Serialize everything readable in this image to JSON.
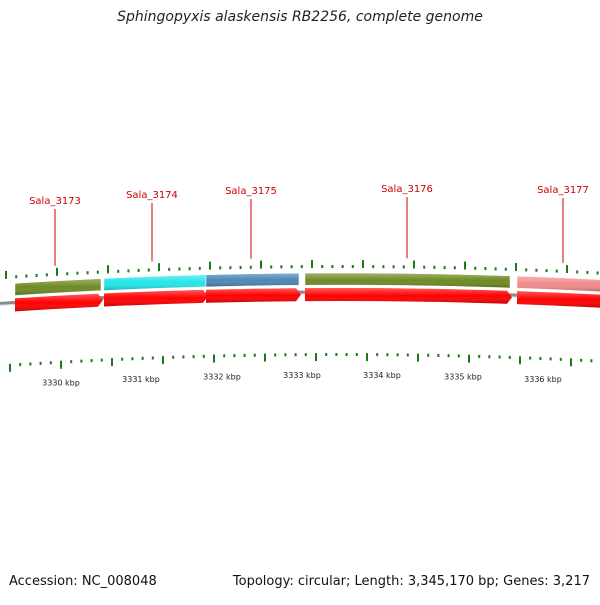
{
  "title": "Sphingopyxis alaskensis RB2256, complete genome",
  "footer": {
    "accession": "Accession: NC_008048",
    "summary": "Topology: circular; Length: 3,345,170 bp; Genes: 3,217"
  },
  "genes": [
    {
      "label": "Sala_3173",
      "color": "#6e8a23"
    },
    {
      "label": "Sala_3174",
      "color": "#22e6ea"
    },
    {
      "label": "Sala_3175",
      "color": "#4b87b7"
    },
    {
      "label": "Sala_3176",
      "color": "#6e8a23"
    },
    {
      "label": "Sala_3177",
      "color": "#f08a8a"
    }
  ],
  "axis_labels": [
    "3330 kbp",
    "3331 kbp",
    "3332 kbp",
    "3333 kbp",
    "3334 kbp",
    "3335 kbp",
    "3336 kbp"
  ],
  "colors": {
    "label": "#cc0000",
    "strand_arrow": "#ff0000",
    "tick": "#1a7a1a",
    "backbone": "#8c8c8c"
  }
}
